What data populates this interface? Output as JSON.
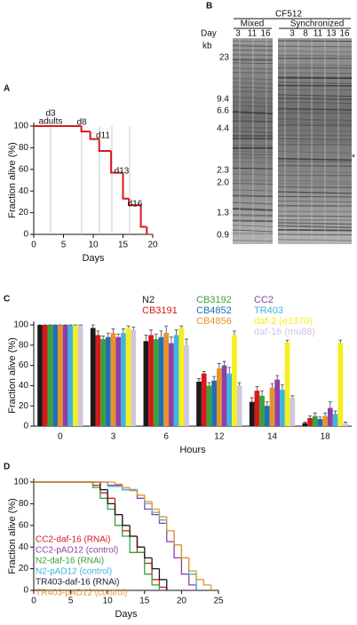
{
  "chart_data": [
    {
      "panel": "A",
      "type": "line",
      "step": true,
      "color": "#d7191c",
      "x": [
        0,
        8,
        9.5,
        11,
        13,
        15,
        16,
        18,
        19
      ],
      "values": [
        100,
        95,
        88,
        77,
        57,
        33,
        27,
        7,
        0
      ],
      "annotations": [
        "d3",
        "adults",
        "d8",
        "d11",
        "d13",
        "d16"
      ],
      "xlabel": "Days",
      "ylabel": "Fraction alive (%)",
      "xlim": [
        0,
        20
      ],
      "xticks": [
        0,
        5,
        10,
        15,
        20
      ],
      "ylim": [
        0,
        100
      ],
      "yticks": [
        0,
        20,
        40,
        60,
        80,
        100
      ]
    },
    {
      "panel": "C",
      "type": "bar",
      "categories": [
        "0",
        "3",
        "6",
        "12",
        "14",
        "18"
      ],
      "xlabel": "Hours",
      "ylabel": "Fraction alive (%)",
      "ylim": [
        0,
        100
      ],
      "yticks": [
        0,
        20,
        40,
        60,
        80,
        100
      ],
      "series": [
        {
          "name": "N2",
          "color": "#1a1a1a",
          "values": [
            100,
            97,
            84,
            44,
            24,
            3
          ],
          "errors": [
            0,
            3,
            6,
            3,
            4,
            1
          ]
        },
        {
          "name": "CB3191",
          "color": "#d7191c",
          "values": [
            100,
            90,
            90,
            52,
            35,
            8
          ],
          "errors": [
            0,
            4,
            5,
            2,
            4,
            2
          ]
        },
        {
          "name": "CB3192",
          "color": "#3aa23a",
          "values": [
            100,
            86,
            86,
            40,
            30,
            10
          ],
          "errors": [
            0,
            3,
            5,
            3,
            5,
            3
          ]
        },
        {
          "name": "CB4852",
          "color": "#1f6fb5",
          "values": [
            100,
            88,
            88,
            45,
            20,
            7
          ],
          "errors": [
            0,
            4,
            6,
            4,
            4,
            2
          ]
        },
        {
          "name": "CB4856",
          "color": "#e8932a",
          "values": [
            100,
            92,
            92,
            57,
            38,
            10
          ],
          "errors": [
            0,
            4,
            7,
            5,
            4,
            3
          ]
        },
        {
          "name": "CC2",
          "color": "#8e3fa8",
          "values": [
            100,
            88,
            82,
            60,
            46,
            18
          ],
          "errors": [
            0,
            3,
            6,
            4,
            4,
            6
          ]
        },
        {
          "name": "TR403",
          "color": "#3db5e0",
          "values": [
            100,
            92,
            90,
            52,
            36,
            12
          ],
          "errors": [
            0,
            4,
            5,
            6,
            5,
            3
          ]
        },
        {
          "name": "daf-2 (e1370)",
          "color": "#f5ef1e",
          "values": [
            100,
            97,
            97,
            90,
            83,
            82
          ],
          "errors": [
            0,
            2,
            2,
            4,
            2,
            3
          ]
        },
        {
          "name": "daf-16 (mu86)",
          "color": "#cfc6de",
          "values": [
            100,
            95,
            80,
            40,
            28,
            3
          ],
          "errors": [
            0,
            3,
            6,
            3,
            2,
            1
          ]
        }
      ]
    },
    {
      "panel": "D",
      "type": "line",
      "step": true,
      "xlabel": "Days",
      "ylabel": "Fraction alive (%)",
      "xlim": [
        0,
        25
      ],
      "xticks": [
        0,
        5,
        10,
        15,
        20,
        25
      ],
      "ylim": [
        0,
        100
      ],
      "yticks": [
        0,
        20,
        40,
        60,
        80,
        100
      ],
      "series": [
        {
          "name": "CC2-daf-16 (RNAi)",
          "color": "#d7191c",
          "x": [
            0,
            8,
            9,
            10,
            11,
            12,
            13,
            14,
            15,
            16,
            17,
            18
          ],
          "values": [
            100,
            97,
            90,
            85,
            70,
            55,
            50,
            35,
            25,
            10,
            3,
            0
          ]
        },
        {
          "name": "CC2-pAD12 (control)",
          "color": "#8e3fa8",
          "x": [
            0,
            10,
            12,
            14,
            15,
            16,
            17,
            18,
            19,
            20,
            21,
            22
          ],
          "values": [
            100,
            97,
            93,
            85,
            75,
            70,
            62,
            45,
            30,
            15,
            5,
            0
          ]
        },
        {
          "name": "N2-daf-16 (RNAi)",
          "color": "#3aa23a",
          "x": [
            0,
            8,
            9,
            10,
            11,
            12,
            13,
            15,
            16,
            17
          ],
          "values": [
            100,
            95,
            85,
            75,
            60,
            50,
            35,
            15,
            5,
            0
          ]
        },
        {
          "name": "N2-pAD12 (control)",
          "color": "#3db5e0",
          "x": [
            0,
            10,
            12,
            14,
            15,
            16,
            17,
            18,
            19,
            20,
            21,
            22
          ],
          "values": [
            100,
            96,
            93,
            88,
            80,
            72,
            65,
            55,
            42,
            30,
            15,
            0
          ]
        },
        {
          "name": "TR403-daf-16 (RNAi)",
          "color": "#1a1a1a",
          "x": [
            0,
            9,
            10,
            11,
            12,
            13,
            14,
            15,
            16,
            17,
            18
          ],
          "values": [
            100,
            93,
            80,
            70,
            60,
            50,
            40,
            30,
            20,
            10,
            0
          ]
        },
        {
          "name": "TR403-pAD12 (control)",
          "color": "#e8932a",
          "x": [
            0,
            11,
            12,
            13,
            14,
            15,
            16,
            17,
            18,
            19,
            20,
            21,
            22,
            23,
            24
          ],
          "values": [
            100,
            98,
            95,
            92,
            88,
            82,
            75,
            68,
            55,
            42,
            30,
            18,
            10,
            5,
            0
          ]
        }
      ]
    }
  ],
  "gel": {
    "panel": "B",
    "strain": "CF512",
    "groups": [
      "Mixed",
      "Synchronized"
    ],
    "day_label": "Day",
    "days": [
      [
        "3",
        "11",
        "16"
      ],
      [
        "3",
        "8",
        "11",
        "13",
        "16"
      ]
    ],
    "size_unit": "kb",
    "sizes": [
      "23",
      "9.4",
      "6.6",
      "4.4",
      "2.3",
      "2.0",
      "1.3",
      "0.9"
    ],
    "marker": "*"
  }
}
